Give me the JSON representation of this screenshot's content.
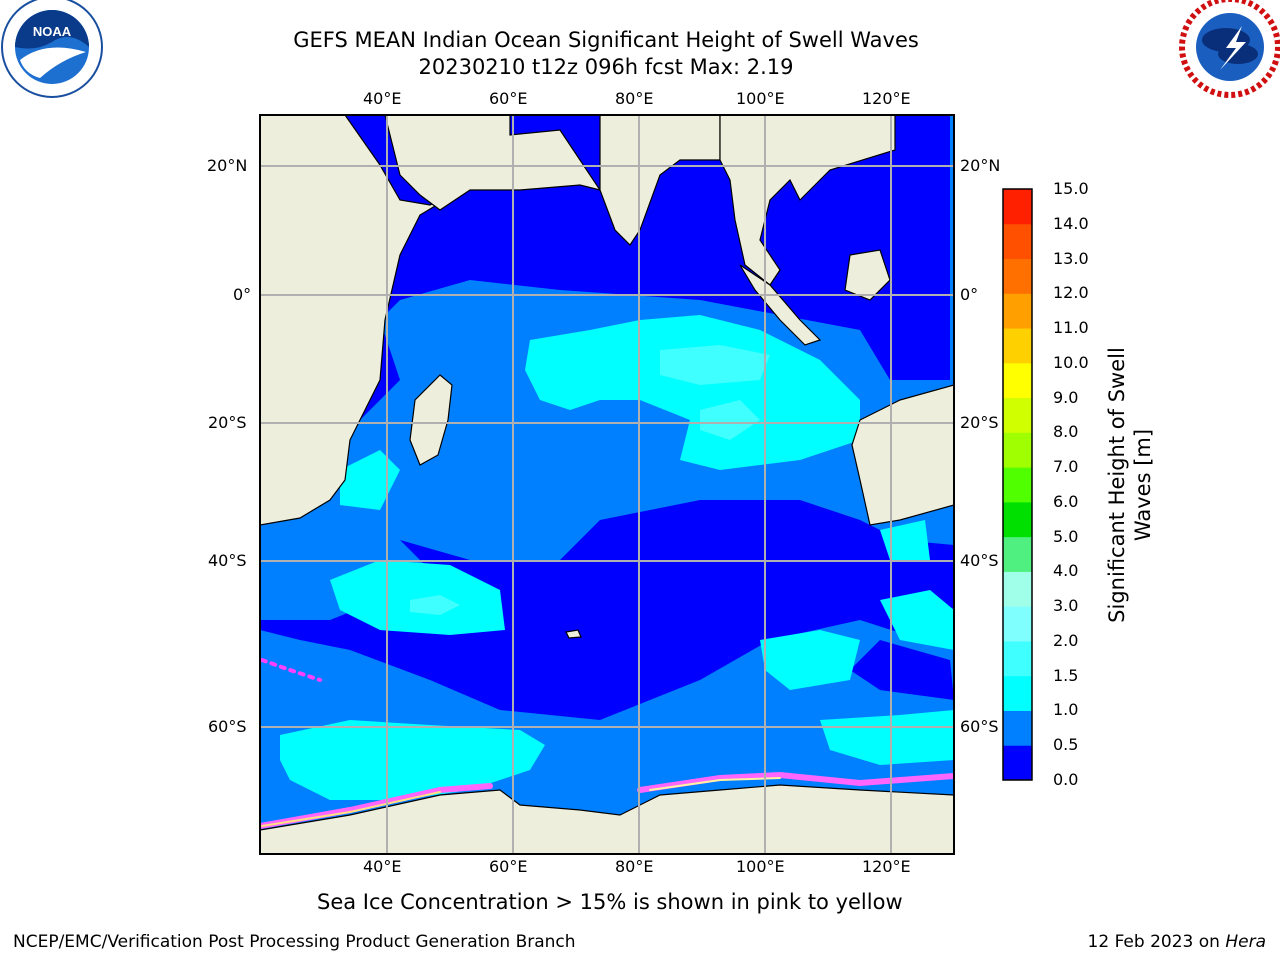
{
  "header": {
    "title_line1": "GEFS MEAN Indian Ocean Significant Height of Swell Waves",
    "title_line2": "20230210 t12z 096h fcst   Max: 2.19"
  },
  "logos": {
    "left": "noaa-logo",
    "right": "national-weather-service-logo"
  },
  "map": {
    "lon_ticks": [
      "40°E",
      "60°E",
      "80°E",
      "100°E",
      "120°E"
    ],
    "lat_ticks": [
      "20°N",
      "0°",
      "20°S",
      "40°S",
      "60°S"
    ],
    "lon_range": [
      20,
      130
    ],
    "lat_range": [
      -73,
      28
    ],
    "land_color": "#eeeedd",
    "grid": true
  },
  "colorbar": {
    "title": "Significant Height of Swell Waves [m]",
    "ticks": [
      "0.0",
      "0.5",
      "1.0",
      "1.5",
      "2.0",
      "3.0",
      "4.0",
      "5.0",
      "6.0",
      "7.0",
      "8.0",
      "9.0",
      "10.0",
      "11.0",
      "12.0",
      "13.0",
      "14.0",
      "15.0"
    ],
    "colors": [
      "#0000ff",
      "#0080ff",
      "#00ffff",
      "#40ffff",
      "#80ffff",
      "#a0ffe8",
      "#50f080",
      "#00e000",
      "#50ff00",
      "#a0ff00",
      "#d0ff00",
      "#ffff00",
      "#ffd000",
      "#ffa000",
      "#ff7000",
      "#ff5000",
      "#ff2000"
    ]
  },
  "caption": "Sea Ice Concentration > 15% is shown in pink to yellow",
  "footer": {
    "left": "NCEP/EMC/Verification Post Processing Product Generation Branch",
    "date": "12 Feb 2023 on",
    "machine": "Hera"
  }
}
